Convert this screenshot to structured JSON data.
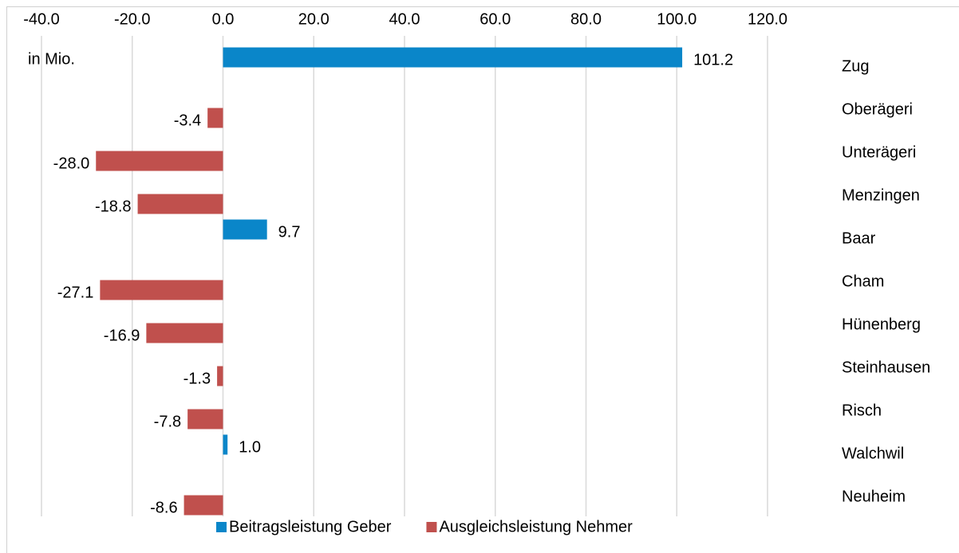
{
  "chart_data": {
    "type": "bar",
    "orientation": "horizontal",
    "annotation": "in Mio.",
    "categories": [
      "Zug",
      "Oberägeri",
      "Unterägeri",
      "Menzingen",
      "Baar",
      "Cham",
      "Hünenberg",
      "Steinhausen",
      "Risch",
      "Walchwil",
      "Neuheim"
    ],
    "series": [
      {
        "name": "Beitragsleistung Geber",
        "color": "#0a86c9",
        "values": [
          101.2,
          null,
          null,
          null,
          9.7,
          null,
          null,
          null,
          null,
          1.0,
          null
        ],
        "value_labels": [
          "101.2",
          null,
          null,
          null,
          "9.7",
          null,
          null,
          null,
          null,
          "1.0",
          null
        ]
      },
      {
        "name": "Ausgleichsleistung Nehmer",
        "color": "#c0504d",
        "values": [
          null,
          -3.4,
          -28.0,
          -18.8,
          null,
          -27.1,
          -16.9,
          -1.3,
          -7.8,
          null,
          -8.6
        ],
        "value_labels": [
          null,
          "-3.4",
          "-28.0",
          "-18.8",
          null,
          "-27.1",
          "-16.9",
          "-1.3",
          "-7.8",
          null,
          "-8.6"
        ]
      }
    ],
    "xlim": [
      -40,
      120
    ],
    "xticks": [
      {
        "value": -40,
        "label": "-40.0"
      },
      {
        "value": -20,
        "label": "-20.0"
      },
      {
        "value": 0,
        "label": "0.0"
      },
      {
        "value": 20,
        "label": "20.0"
      },
      {
        "value": 40,
        "label": "40.0"
      },
      {
        "value": 60,
        "label": "60.0"
      },
      {
        "value": 80,
        "label": "80.0"
      },
      {
        "value": 100,
        "label": "100.0"
      },
      {
        "value": 120,
        "label": "120.0"
      }
    ],
    "grid": true,
    "legend": "bottom"
  }
}
